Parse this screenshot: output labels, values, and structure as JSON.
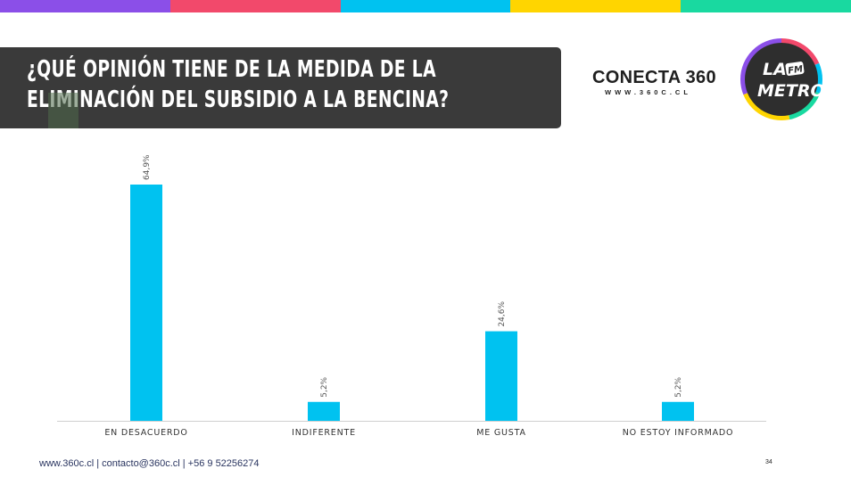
{
  "stripe_colors": [
    "#8b4fe8",
    "#f2496b",
    "#00c2f0",
    "#ffd500",
    "#19d9a0"
  ],
  "title": "¿QUÉ OPINIÓN TIENE DE LA MEDIDA DE LA ELIMINACIÓN DEL SUBSIDIO A LA BENCINA?",
  "logos": {
    "conecta_brand": "CONECTA 360",
    "conecta_url": "WWW.360C.CL",
    "metro_line1": "LA",
    "metro_fm": "FM",
    "metro_line2": "METRO"
  },
  "chart_data": {
    "type": "bar",
    "categories": [
      "EN DESACUERDO",
      "INDIFERENTE",
      "ME GUSTA",
      "NO ESTOY INFORMADO"
    ],
    "values": [
      64.9,
      5.2,
      24.6,
      5.2
    ],
    "value_labels": [
      "64,9%",
      "5,2%",
      "24,6%",
      "5,2%"
    ],
    "bar_color": "#00c2f0",
    "ylim": [
      0,
      65
    ],
    "grid": false
  },
  "footer": {
    "contact": "www.360c.cl | contacto@360c.cl | +56 9 52256274",
    "page_number": "34"
  }
}
